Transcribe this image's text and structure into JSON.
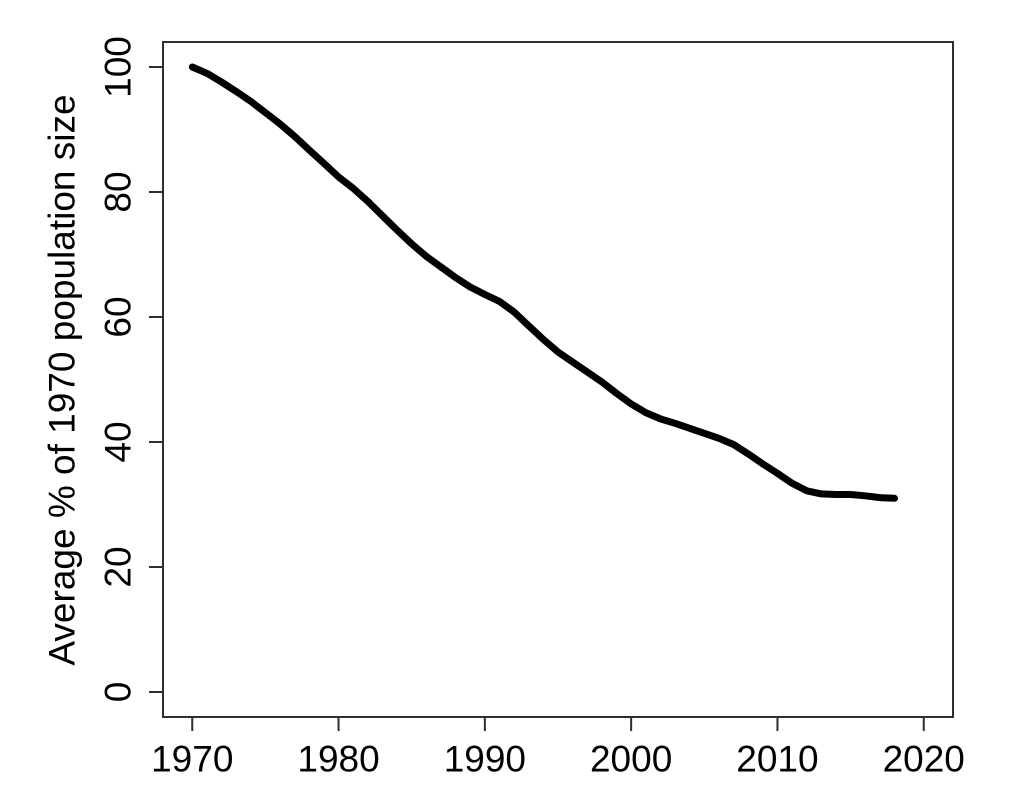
{
  "figure": {
    "background": "#ffffff",
    "title": "",
    "y_axis_title": "Average % of 1970 population size",
    "x_axis_title": ""
  },
  "chart_data": {
    "type": "line",
    "title": "",
    "xlabel": "",
    "ylabel": "Average % of 1970 population size",
    "x": [
      1970,
      1971,
      1972,
      1973,
      1974,
      1975,
      1976,
      1977,
      1978,
      1979,
      1980,
      1981,
      1982,
      1983,
      1984,
      1985,
      1986,
      1987,
      1988,
      1989,
      1990,
      1991,
      1992,
      1993,
      1994,
      1995,
      1996,
      1997,
      1998,
      1999,
      2000,
      2001,
      2002,
      2003,
      2004,
      2005,
      2006,
      2007,
      2008,
      2009,
      2010,
      2011,
      2012,
      2013,
      2014,
      2015,
      2016,
      2017,
      2018
    ],
    "series": [
      {
        "name": "Average % of 1970 population size",
        "values": [
          100.0,
          99.0,
          97.6,
          96.1,
          94.5,
          92.7,
          90.9,
          88.9,
          86.7,
          84.6,
          82.4,
          80.6,
          78.5,
          76.2,
          73.9,
          71.7,
          69.7,
          68.0,
          66.3,
          64.8,
          63.6,
          62.5,
          60.8,
          58.6,
          56.4,
          54.4,
          52.8,
          51.2,
          49.6,
          47.8,
          46.1,
          44.7,
          43.7,
          43.0,
          42.2,
          41.4,
          40.6,
          39.6,
          38.1,
          36.5,
          35.0,
          33.4,
          32.2,
          31.7,
          31.6,
          31.6,
          31.4,
          31.1,
          31.0
        ]
      }
    ],
    "x_ticks": [
      1970,
      1980,
      1990,
      2000,
      2010,
      2020
    ],
    "y_ticks": [
      0,
      20,
      40,
      60,
      80,
      100
    ],
    "xlim": [
      1968,
      2022
    ],
    "ylim": [
      -4,
      104
    ],
    "grid": false,
    "legend_position": "none",
    "line_color": "#000000",
    "axis_color": "#2e2e2e",
    "text_color": "#000000",
    "background": "#ffffff"
  }
}
